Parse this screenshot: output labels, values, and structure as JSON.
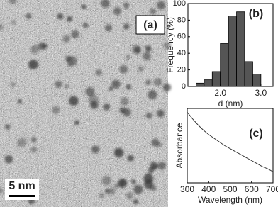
{
  "image": {
    "label": "(a)",
    "scale_bar": "5 nm"
  },
  "chart_data": [
    {
      "type": "histogram",
      "label": "(b)",
      "xlabel": "d (nm)",
      "ylabel": "Frequency (%)",
      "bins": [
        1.4,
        1.6,
        1.8,
        2.0,
        2.2,
        2.4,
        2.6,
        2.8,
        3.0
      ],
      "values": [
        4,
        8,
        18,
        52,
        85,
        90,
        30,
        15
      ],
      "color": "#555555",
      "xlim": [
        1.2,
        3.3
      ],
      "ylim": [
        0,
        100
      ],
      "xticks": [
        {
          "value": 2.0,
          "label": "2.0"
        },
        {
          "value": 3.0,
          "label": "3.0"
        }
      ],
      "yticks": [
        0,
        20,
        40,
        60,
        80,
        100
      ]
    },
    {
      "type": "line",
      "label": "(c)",
      "xlabel": "Wavelength (nm)",
      "ylabel": "Absorbance",
      "x": [
        300,
        325,
        350,
        375,
        400,
        425,
        450,
        475,
        500,
        525,
        550,
        575,
        600,
        625,
        650,
        675,
        700
      ],
      "values": [
        0.95,
        0.86,
        0.78,
        0.71,
        0.65,
        0.6,
        0.55,
        0.5,
        0.46,
        0.42,
        0.38,
        0.34,
        0.3,
        0.26,
        0.22,
        0.19,
        0.15
      ],
      "color": "#333333",
      "xlim": [
        300,
        700
      ],
      "ylim": [
        0,
        1
      ],
      "xticks": [
        300,
        400,
        500,
        600,
        700
      ]
    }
  ]
}
